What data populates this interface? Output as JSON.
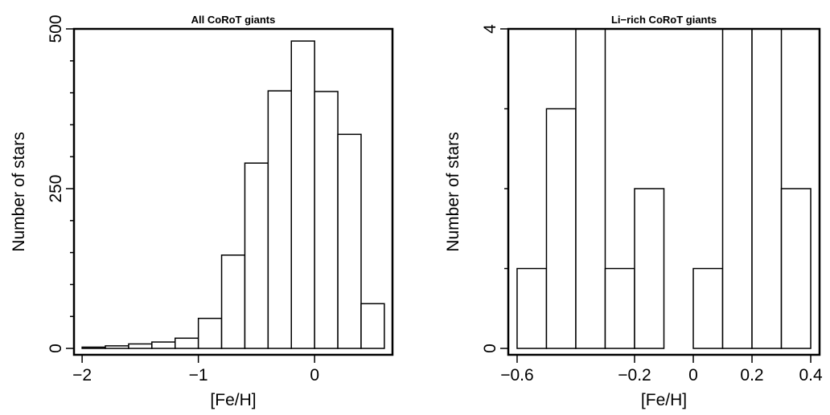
{
  "chart_data": [
    {
      "type": "bar",
      "title": "All CoRoT giants",
      "xlabel": "[Fe/H]",
      "ylabel": "Number of stars",
      "bin_edges": [
        -2.0,
        -1.8,
        -1.6,
        -1.4,
        -1.2,
        -1.0,
        -0.8,
        -0.6,
        -0.4,
        -0.2,
        0.0,
        0.2,
        0.4,
        0.6
      ],
      "values": [
        2,
        4,
        7,
        10,
        16,
        47,
        146,
        290,
        403,
        481,
        402,
        335,
        70
      ],
      "xlim": [
        -2.07,
        0.67
      ],
      "ylim": [
        -10,
        500
      ],
      "xticks": [
        {
          "value": -2,
          "label": "−2"
        },
        {
          "value": -1,
          "label": "−1"
        },
        {
          "value": 0,
          "label": "0"
        }
      ],
      "yticks": [
        {
          "value": 0,
          "label": "0"
        },
        {
          "value": 250,
          "label": "250"
        },
        {
          "value": 500,
          "label": "500"
        }
      ],
      "yminor_ticks": [
        50,
        100,
        150,
        200,
        300,
        350,
        400,
        450
      ]
    },
    {
      "type": "bar",
      "title": "Li−rich CoRoT giants",
      "xlabel": "[Fe/H]",
      "ylabel": "Number of stars",
      "bin_edges": [
        -0.6,
        -0.5,
        -0.4,
        -0.3,
        -0.2,
        -0.1,
        0.0,
        0.1,
        0.2,
        0.3,
        0.4
      ],
      "values": [
        1,
        3,
        4,
        1,
        2,
        0,
        1,
        4,
        4,
        2
      ],
      "xlim": [
        -0.63,
        0.43
      ],
      "ylim": [
        -0.08,
        4.0
      ],
      "xticks": [
        {
          "value": -0.6,
          "label": "−0.6"
        },
        {
          "value": -0.2,
          "label": "−0.2"
        },
        {
          "value": 0,
          "label": "0"
        },
        {
          "value": 0.2,
          "label": "0.2"
        },
        {
          "value": 0.4,
          "label": "0.4"
        }
      ],
      "yticks": [
        {
          "value": 0,
          "label": "0"
        },
        {
          "value": 4,
          "label": "4"
        }
      ],
      "yminor_ticks": [
        1,
        2,
        3
      ]
    }
  ]
}
